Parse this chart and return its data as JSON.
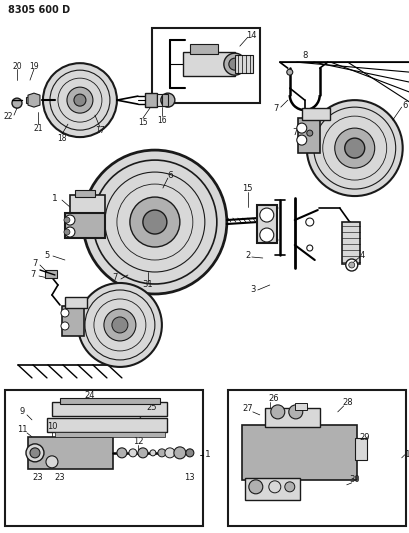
{
  "title": "8305 600 D",
  "bg_color": "#ffffff",
  "line_color": "#1a1a1a",
  "fig_width": 4.1,
  "fig_height": 5.33,
  "dpi": 100,
  "gray_light": "#d8d8d8",
  "gray_mid": "#b0b0b0",
  "gray_dark": "#888888"
}
